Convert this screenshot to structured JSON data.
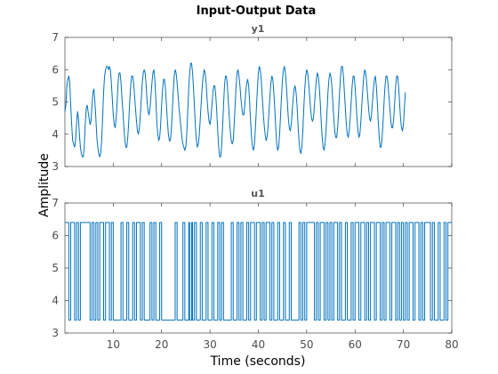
{
  "window": {
    "title": "Input-Output Data"
  },
  "chart_data": {
    "type": "line",
    "title": "Input-Output Data",
    "xlabel": "Time (seconds)",
    "ylabel": "Amplitude",
    "line_color": "#0072BD",
    "xlim": [
      0,
      80
    ],
    "x_ticks": [
      10,
      20,
      30,
      40,
      50,
      60,
      70,
      80
    ],
    "grid": false,
    "panels": [
      {
        "name": "y1",
        "subtitle": "y1",
        "ylim": [
          3,
          7
        ],
        "y_ticks": [
          3,
          4,
          5,
          6,
          7
        ],
        "sample_time": 0.2,
        "values": [
          4.7,
          4.9,
          5.5,
          5.7,
          5.8,
          5.6,
          4.9,
          4.3,
          3.8,
          3.7,
          3.6,
          3.8,
          4.3,
          4.7,
          4.5,
          4.0,
          3.6,
          3.4,
          3.3,
          3.3,
          3.6,
          4.3,
          4.8,
          4.9,
          4.7,
          4.5,
          4.3,
          4.4,
          4.9,
          5.3,
          5.4,
          5.0,
          4.5,
          3.9,
          3.6,
          3.4,
          3.3,
          3.4,
          3.8,
          4.5,
          5.3,
          5.8,
          6.0,
          6.1,
          6.1,
          6.0,
          6.1,
          6.0,
          5.6,
          5.1,
          4.6,
          4.3,
          4.2,
          4.5,
          5.0,
          5.6,
          5.9,
          5.9,
          5.6,
          5.1,
          4.7,
          4.2,
          3.8,
          3.6,
          3.6,
          3.9,
          4.4,
          5.0,
          5.5,
          5.8,
          5.8,
          5.6,
          5.2,
          4.8,
          4.4,
          4.1,
          4.0,
          4.2,
          4.6,
          5.1,
          5.6,
          5.9,
          6.0,
          5.9,
          5.5,
          5.0,
          4.7,
          4.6,
          4.8,
          5.2,
          5.6,
          5.9,
          6.0,
          5.7,
          5.1,
          4.4,
          4.0,
          3.8,
          3.9,
          4.3,
          4.9,
          5.4,
          5.7,
          5.7,
          5.4,
          4.9,
          4.4,
          4.0,
          3.8,
          3.8,
          4.1,
          4.7,
          5.3,
          5.8,
          6.0,
          5.9,
          5.6,
          5.2,
          4.8,
          4.5,
          4.2,
          3.9,
          3.7,
          3.6,
          3.5,
          3.6,
          4.0,
          4.7,
          5.4,
          5.9,
          6.2,
          6.2,
          5.9,
          5.4,
          4.8,
          4.2,
          3.8,
          3.6,
          3.7,
          4.0,
          4.5,
          5.0,
          5.5,
          5.8,
          6.0,
          5.9,
          5.6,
          5.1,
          4.7,
          4.4,
          4.3,
          4.5,
          4.9,
          5.3,
          5.5,
          5.5,
          5.2,
          4.7,
          4.1,
          3.6,
          3.3,
          3.3,
          3.6,
          4.2,
          4.9,
          5.5,
          5.8,
          5.8,
          5.5,
          5.0,
          4.5,
          4.1,
          3.8,
          3.7,
          3.8,
          4.3,
          4.9,
          5.5,
          5.9,
          6.0,
          5.8,
          5.5,
          5.1,
          4.8,
          4.6,
          4.6,
          4.9,
          5.3,
          5.6,
          5.7,
          5.5,
          5.0,
          4.4,
          3.9,
          3.6,
          3.5,
          3.7,
          4.2,
          4.8,
          5.4,
          5.9,
          6.1,
          6.0,
          5.7,
          5.2,
          4.7,
          4.3,
          4.0,
          3.8,
          3.9,
          4.2,
          4.7,
          5.2,
          5.6,
          5.8,
          5.7,
          5.3,
          4.8,
          4.2,
          3.7,
          3.5,
          3.6,
          4.0,
          4.6,
          5.2,
          5.7,
          6.0,
          6.1,
          5.9,
          5.5,
          5.0,
          4.5,
          4.2,
          4.1,
          4.3,
          4.7,
          5.1,
          5.4,
          5.5,
          5.3,
          4.9,
          4.3,
          3.8,
          3.5,
          3.4,
          3.6,
          4.1,
          4.8,
          5.4,
          5.8,
          6.0,
          5.9,
          5.6,
          5.2,
          4.8,
          4.5,
          4.4,
          4.5,
          4.9,
          5.3,
          5.7,
          5.9,
          5.8,
          5.5,
          5.0,
          4.4,
          3.9,
          3.6,
          3.5,
          3.7,
          4.1,
          4.7,
          5.3,
          5.7,
          5.9,
          5.8,
          5.5,
          5.0,
          4.5,
          4.1,
          3.9,
          3.9,
          4.2,
          4.7,
          5.3,
          5.8,
          6.1,
          6.1,
          5.8,
          5.3,
          4.8,
          4.3,
          4.0,
          3.9,
          4.1,
          4.5,
          5.0,
          5.5,
          5.8,
          5.8,
          5.5,
          5.0,
          4.5,
          4.1,
          3.9,
          4.0,
          4.4,
          4.9,
          5.4,
          5.8,
          6.0,
          5.9,
          5.6,
          5.2,
          4.8,
          4.5,
          4.4,
          4.6,
          5.0,
          5.4,
          5.7,
          5.8,
          5.5,
          5.0,
          4.4,
          3.9,
          3.6,
          3.6,
          3.9,
          4.4,
          5.0,
          5.5,
          5.8,
          5.8,
          5.6,
          5.2,
          4.8,
          4.4,
          4.2,
          4.2,
          4.5,
          5.0,
          5.5,
          5.8,
          5.8,
          5.5,
          5.0,
          4.5,
          4.2,
          4.1,
          4.3,
          4.8,
          5.3
        ]
      },
      {
        "name": "u1",
        "subtitle": "u1",
        "ylim": [
          3,
          7
        ],
        "y_ticks": [
          3,
          4,
          5,
          6,
          7
        ],
        "levels": [
          3.4,
          6.4
        ],
        "start_level": 6.4,
        "switch_times": [
          0.8,
          1.2,
          2.0,
          2.4,
          2.8,
          3.2,
          5.2,
          5.6,
          6.0,
          6.4,
          6.8,
          7.2,
          8.0,
          8.4,
          9.2,
          9.6,
          10.0,
          11.6,
          12.0,
          12.8,
          13.2,
          14.0,
          14.4,
          14.8,
          15.6,
          16.0,
          16.4,
          17.6,
          18.0,
          18.4,
          18.8,
          19.6,
          20.0,
          22.8,
          23.2,
          24.4,
          24.8,
          25.6,
          25.8,
          26.2,
          26.4,
          26.8,
          27.2,
          28.0,
          28.4,
          29.2,
          29.6,
          30.4,
          30.8,
          31.6,
          32.0,
          32.4,
          32.8,
          34.4,
          34.8,
          35.6,
          36.0,
          36.4,
          36.8,
          37.6,
          38.0,
          38.4,
          39.2,
          39.6,
          40.4,
          40.8,
          41.2,
          41.6,
          42.4,
          42.8,
          43.2,
          44.0,
          44.4,
          45.2,
          45.6,
          46.4,
          46.8,
          48.4,
          48.8,
          49.2,
          49.6,
          50.0,
          51.6,
          52.0,
          52.4,
          52.8,
          53.6,
          54.0,
          54.4,
          54.8,
          55.2,
          55.6,
          56.4,
          56.8,
          57.2,
          58.0,
          58.4,
          59.2,
          59.6,
          60.0,
          60.8,
          61.2,
          62.0,
          62.4,
          62.8,
          63.2,
          64.0,
          64.4,
          65.2,
          65.6,
          66.0,
          66.4,
          67.2,
          67.6,
          68.4,
          68.8,
          69.2,
          69.6,
          70.0,
          70.4,
          70.8,
          71.2,
          72.0,
          72.4,
          73.2,
          73.6,
          74.0,
          74.4,
          75.6,
          76.0,
          76.4,
          77.2,
          77.6,
          78.4,
          78.8,
          79.2
        ]
      }
    ]
  }
}
